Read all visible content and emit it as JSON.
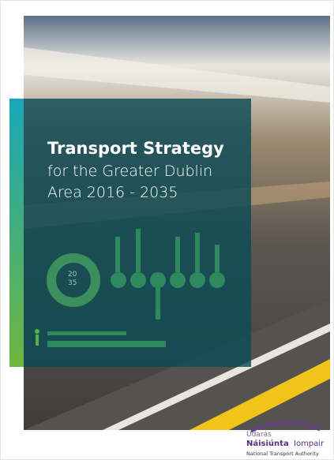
{
  "cover": {
    "title": "Transport Strategy",
    "subtitle_lines": [
      "for the Greater Dublin",
      "Area 2016 - 2035"
    ],
    "badge": [
      "20",
      "35"
    ]
  },
  "logo": {
    "line1": "Údarás",
    "bold": "Náisiúnta",
    "light": "Iompair",
    "line3": "National Transport Authority"
  }
}
